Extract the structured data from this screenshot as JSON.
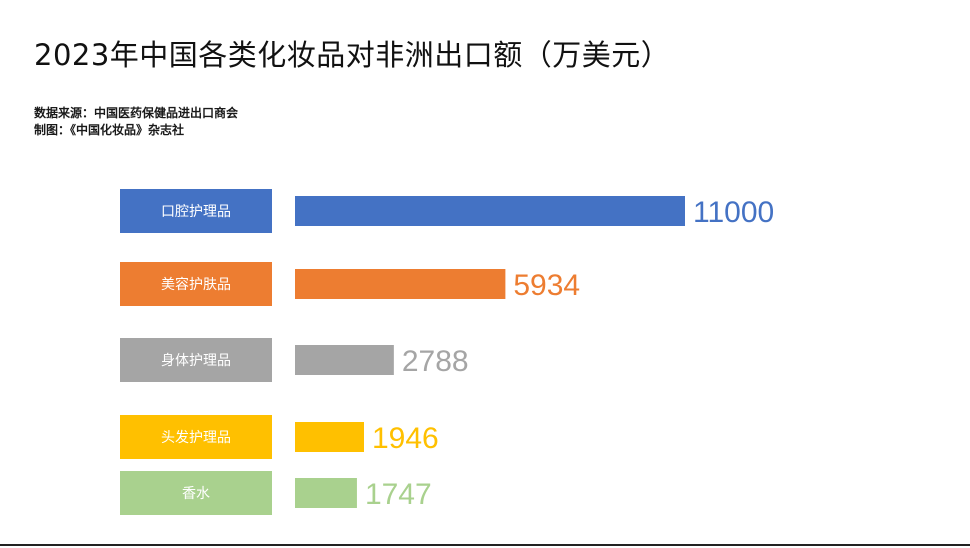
{
  "header": {
    "title": "2023年中国各类化妆品对非洲出口额（万美元）",
    "source": "数据来源：中国医药保健品进出口商会",
    "credit": "制图：《中国化妆品》杂志社"
  },
  "chart_data": {
    "type": "bar",
    "orientation": "horizontal",
    "title": "2023年中国各类化妆品对非洲出口额（万美元）",
    "categories": [
      "口腔护理品",
      "美容护肤品",
      "身体护理品",
      "头发护理品",
      "香水"
    ],
    "values": [
      11000,
      5934,
      2788,
      1946,
      1747
    ],
    "colors": [
      "#4472c4",
      "#ed7d31",
      "#a5a5a5",
      "#ffc000",
      "#a9d18e"
    ],
    "xlim": [
      0,
      11000
    ],
    "grid": false,
    "legend": "none"
  }
}
